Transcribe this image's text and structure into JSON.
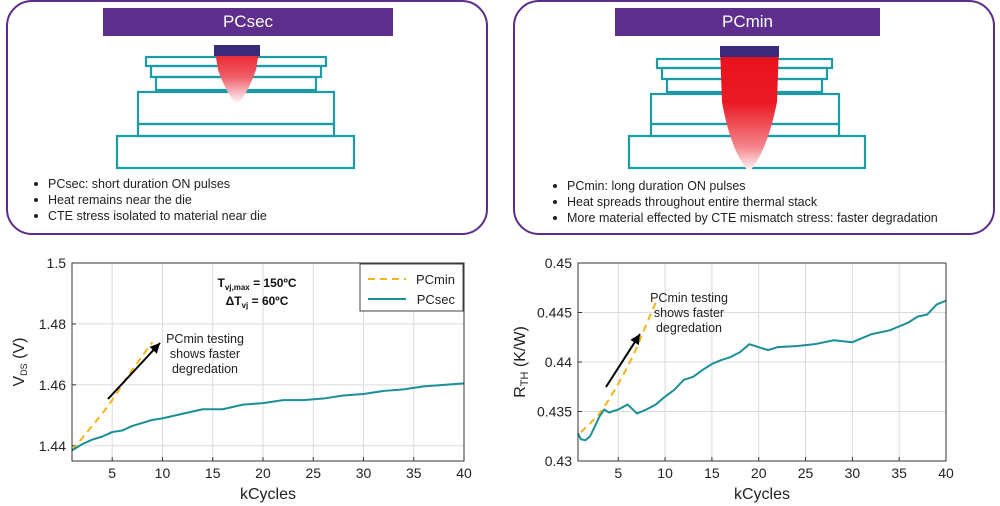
{
  "panels": {
    "left": {
      "title": "PCsec",
      "bullets": [
        "PCsec: short duration ON pulses",
        "Heat remains near the die",
        "CTE stress isolated to material near die"
      ]
    },
    "right": {
      "title": "PCmin",
      "bullets": [
        "PCmin: long duration ON pulses",
        "Heat spreads throughout entire thermal stack",
        "More material effected by CTE mismatch stress: faster degradation"
      ]
    }
  },
  "colors": {
    "panel_border": "#5b2d86",
    "panel_header": "#5e2e8c",
    "stack_outline": "#1a9ba5",
    "heat": "#e8101c",
    "pcmin": "#f2b418",
    "pcsec": "#1b8f96"
  },
  "chart_data": [
    {
      "type": "line",
      "xlabel": "kCycles",
      "ylabel_main": "V",
      "ylabel_sub": "DS",
      "ylabel_unit": " (V)",
      "xlim": [
        1,
        40
      ],
      "ylim": [
        1.435,
        1.5
      ],
      "xticks": [
        "5",
        "10",
        "15",
        "20",
        "25",
        "30",
        "35",
        "40"
      ],
      "yticks": [
        "1.44",
        "1.46",
        "1.48",
        "1.5"
      ],
      "grid": true,
      "legend_position": "top-right",
      "legend": [
        "PCmin",
        "PCsec"
      ],
      "conditions": [
        {
          "main": "T",
          "sub": "vj,max",
          "rest": " = 150ºC"
        },
        {
          "main": "ΔT",
          "sub": "vj",
          "rest": " = 60ºC"
        }
      ],
      "annotation": [
        "PCmin testing",
        "shows faster",
        "degredation"
      ],
      "series": [
        {
          "name": "PCmin",
          "style": "dashed",
          "x": [
            1,
            2,
            3,
            4,
            5,
            6,
            7,
            8,
            9
          ],
          "y": [
            1.4385,
            1.4425,
            1.4465,
            1.4505,
            1.455,
            1.46,
            1.465,
            1.4695,
            1.474
          ]
        },
        {
          "name": "PCsec",
          "style": "solid",
          "x": [
            1,
            2,
            3,
            4,
            5,
            6,
            7,
            8,
            9,
            10,
            12,
            14,
            16,
            18,
            20,
            22,
            24,
            26,
            28,
            30,
            32,
            34,
            36,
            38,
            40
          ],
          "y": [
            1.4385,
            1.4405,
            1.442,
            1.443,
            1.4445,
            1.445,
            1.4465,
            1.4475,
            1.4485,
            1.449,
            1.4505,
            1.452,
            1.452,
            1.4535,
            1.454,
            1.455,
            1.455,
            1.4555,
            1.4565,
            1.457,
            1.458,
            1.4585,
            1.4595,
            1.46,
            1.4605
          ]
        }
      ]
    },
    {
      "type": "line",
      "xlabel": "kCycles",
      "ylabel_main": "R",
      "ylabel_sub": "TH",
      "ylabel_unit": " (K/W)",
      "xlim": [
        0.7,
        40
      ],
      "ylim": [
        0.43,
        0.45
      ],
      "xticks": [
        "5",
        "10",
        "15",
        "20",
        "25",
        "30",
        "35",
        "40"
      ],
      "yticks": [
        "0.43",
        "0.435",
        "0.44",
        "0.445",
        "0.45"
      ],
      "grid": true,
      "annotation": [
        "PCmin testing",
        "shows faster",
        "degredation"
      ],
      "series": [
        {
          "name": "PCmin",
          "style": "dashed",
          "x": [
            1,
            2,
            3,
            4,
            5,
            6,
            7,
            8,
            9
          ],
          "y": [
            0.4329,
            0.4338,
            0.4348,
            0.4362,
            0.4378,
            0.4395,
            0.4415,
            0.4438,
            0.446
          ]
        },
        {
          "name": "PCsec",
          "style": "solid",
          "x": [
            0.7,
            1,
            1.5,
            2,
            2.5,
            3,
            3.5,
            4,
            5,
            6,
            7,
            8,
            9,
            10,
            11,
            12,
            13,
            14,
            15,
            16,
            17,
            18,
            19,
            20,
            21,
            22,
            24,
            26,
            28,
            30,
            32,
            34,
            35,
            36,
            37,
            38,
            39,
            40
          ],
          "y": [
            0.4328,
            0.4322,
            0.4321,
            0.4325,
            0.4335,
            0.4345,
            0.4352,
            0.4349,
            0.4352,
            0.4357,
            0.4348,
            0.4352,
            0.4357,
            0.4365,
            0.4372,
            0.4382,
            0.4385,
            0.4392,
            0.4398,
            0.4402,
            0.4405,
            0.441,
            0.4418,
            0.4415,
            0.4412,
            0.4415,
            0.4416,
            0.4418,
            0.4422,
            0.442,
            0.4428,
            0.4432,
            0.4436,
            0.444,
            0.4446,
            0.4448,
            0.4458,
            0.4462
          ]
        }
      ]
    }
  ]
}
